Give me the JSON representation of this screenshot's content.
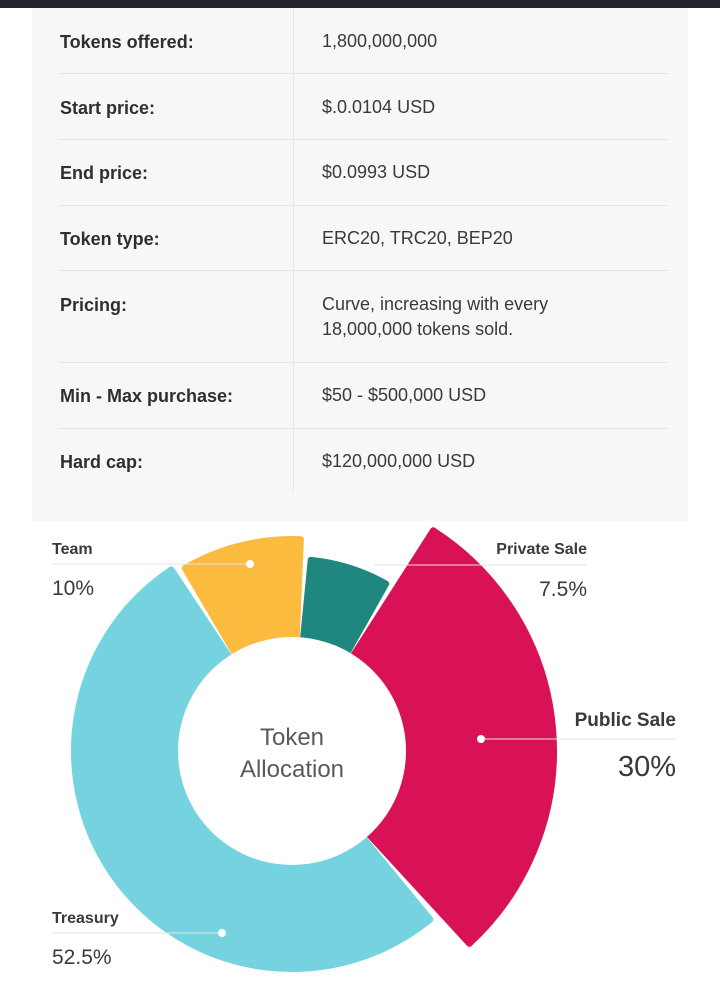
{
  "sale_details": {
    "rows": [
      {
        "label": "Tokens offered:",
        "value": "1,800,000,000"
      },
      {
        "label": "Start price:",
        "value": "$.0.0104 USD"
      },
      {
        "label": "End price:",
        "value": "$0.0993 USD"
      },
      {
        "label": "Token type:",
        "value": "ERC20, TRC20, BEP20"
      },
      {
        "label": "Pricing:",
        "value_lines": [
          "Curve, increasing with every",
          "18,000,000 tokens sold."
        ]
      },
      {
        "label": "Min - Max purchase:",
        "value": "$50 - $500,000 USD"
      },
      {
        "label": "Hard cap:",
        "value": "$120,000,000 USD"
      }
    ]
  },
  "chart_data": {
    "type": "pie",
    "variant": "donut",
    "center_label_lines": [
      "Token",
      "Allocation"
    ],
    "slices": [
      {
        "name": "Team",
        "value": 10,
        "label": "10%",
        "color": "#fbbb3f"
      },
      {
        "name": "Private Sale",
        "value": 7.5,
        "label": "7.5%",
        "color": "#1f877e"
      },
      {
        "name": "Public Sale",
        "value": 30,
        "label": "30%",
        "color": "#d91257"
      },
      {
        "name": "Treasury",
        "value": 52.5,
        "label": "52.5%",
        "color": "#74d3df"
      }
    ]
  }
}
